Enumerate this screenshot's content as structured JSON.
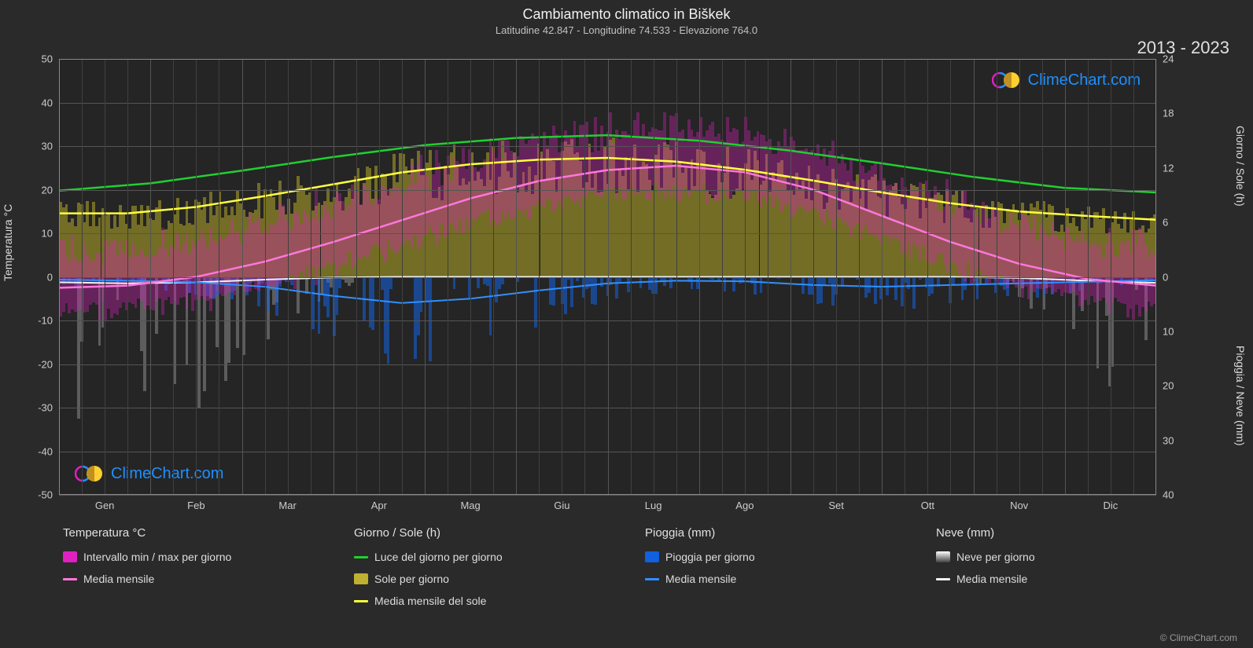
{
  "title": "Cambiamento climatico in Biškek",
  "subtitle": "Latitudine 42.847 - Longitudine 74.533 - Elevazione 764.0",
  "year_range": "2013 - 2023",
  "watermark": "ClimeChart.com",
  "copyright": "© ClimeChart.com",
  "axes": {
    "left_label": "Temperatura °C",
    "right_label_top": "Giorno / Sole (h)",
    "right_label_bottom": "Pioggia / Neve (mm)",
    "left_ticks": [
      50,
      40,
      30,
      20,
      10,
      0,
      -10,
      -20,
      -30,
      -40,
      -50
    ],
    "right_ticks_top": [
      24,
      18,
      12,
      6,
      0
    ],
    "right_ticks_bottom": [
      10,
      20,
      30,
      40
    ],
    "x_ticks": [
      "Gen",
      "Feb",
      "Mar",
      "Apr",
      "Mag",
      "Giu",
      "Lug",
      "Ago",
      "Set",
      "Ott",
      "Nov",
      "Dic"
    ]
  },
  "chart": {
    "background_color": "#2a2a2a",
    "plot_background": "#252525",
    "grid_color": "#555555",
    "temp_ylim": [
      -50,
      50
    ],
    "hours_ylim": [
      0,
      24
    ],
    "precip_ylim": [
      0,
      40
    ]
  },
  "colors": {
    "temp_range": "#e020c0",
    "temp_mean": "#ff77dd",
    "daylight": "#20d030",
    "sunshine_bar": "#c0b030",
    "sunshine_mean": "#ffff40",
    "rain_bar": "#1060e0",
    "rain_mean": "#3090ff",
    "snow_bar": "#808080",
    "snow_mean": "#f0f0f0",
    "brand": "#1e90ff"
  },
  "series": {
    "daylight_hours": [
      9.5,
      10.3,
      11.7,
      13.2,
      14.5,
      15.3,
      15.6,
      15.0,
      13.9,
      12.5,
      11.0,
      9.8,
      9.3
    ],
    "sunshine_mean_hours": [
      7.0,
      7.0,
      7.7,
      8.9,
      10.2,
      11.5,
      12.4,
      12.9,
      13.1,
      12.7,
      11.8,
      10.6,
      9.3,
      8.1,
      7.2,
      6.7,
      6.3
    ],
    "temp_mean_c": [
      -2.5,
      -2.0,
      0.0,
      3.5,
      8.0,
      13.0,
      18.0,
      22.0,
      24.5,
      25.5,
      24.0,
      20.0,
      14.0,
      8.0,
      3.0,
      -0.5,
      -2.0
    ],
    "rain_mean_mm": [
      0.5,
      0.7,
      1.0,
      1.8,
      3.5,
      4.8,
      4.0,
      2.5,
      1.2,
      0.7,
      0.8,
      1.5,
      1.8,
      1.5,
      1.2,
      0.9,
      0.6
    ],
    "snow_mean_mm": [
      1.0,
      1.2,
      1.0,
      0.5,
      0.1,
      0.0,
      0.0,
      0.0,
      0.0,
      0.0,
      0.0,
      0.0,
      0.0,
      0.0,
      0.2,
      0.7,
      1.1
    ]
  },
  "legend": {
    "col1_header": "Temperatura °C",
    "col1_item1": "Intervallo min / max per giorno",
    "col1_item2": "Media mensile",
    "col2_header": "Giorno / Sole (h)",
    "col2_item1": "Luce del giorno per giorno",
    "col2_item2": "Sole per giorno",
    "col2_item3": "Media mensile del sole",
    "col3_header": "Pioggia (mm)",
    "col3_item1": "Pioggia per giorno",
    "col3_item2": "Media mensile",
    "col4_header": "Neve (mm)",
    "col4_item1": "Neve per giorno",
    "col4_item2": "Media mensile"
  }
}
